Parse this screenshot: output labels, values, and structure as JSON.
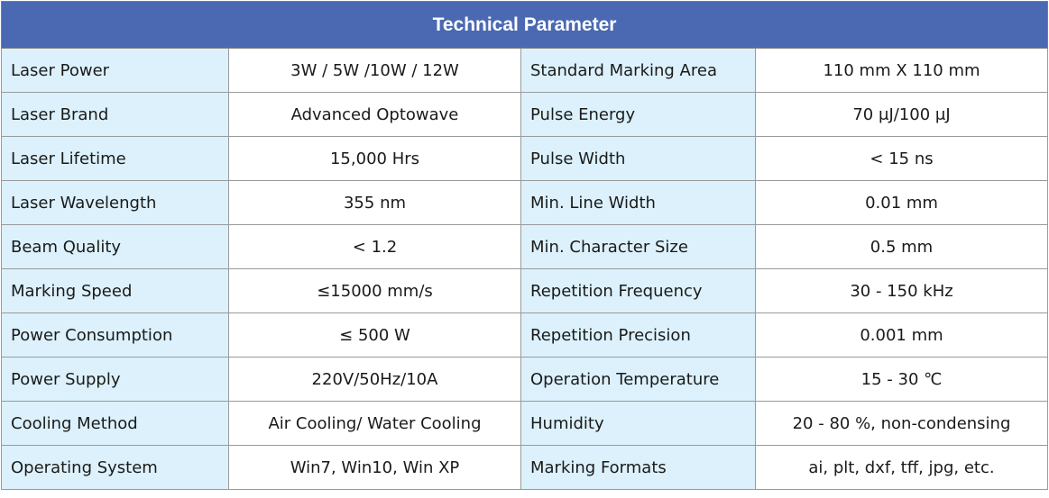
{
  "table": {
    "title": "Technical Parameter",
    "rows": [
      [
        "Laser Power",
        "3W / 5W /10W / 12W",
        "Standard Marking Area",
        "110 mm X 110 mm"
      ],
      [
        "Laser Brand",
        "Advanced Optowave",
        "Pulse Energy",
        "70 μJ/100 μJ"
      ],
      [
        "Laser Lifetime",
        "15,000 Hrs",
        "Pulse Width",
        "< 15 ns"
      ],
      [
        "Laser Wavelength",
        "355 nm",
        "Min. Line Width",
        "0.01 mm"
      ],
      [
        "Beam Quality",
        "< 1.2",
        "Min. Character Size",
        "0.5 mm"
      ],
      [
        "Marking Speed",
        "≤15000 mm/s",
        "Repetition Frequency",
        "30 - 150 kHz"
      ],
      [
        "Power Consumption",
        "≤ 500 W",
        "Repetition Precision",
        "0.001 mm"
      ],
      [
        "Power Supply",
        "220V/50Hz/10A",
        "Operation Temperature",
        "15 - 30 ℃"
      ],
      [
        "Cooling Method",
        "Air Cooling/ Water Cooling",
        "Humidity",
        "20 - 80 %, non-condensing"
      ],
      [
        "Operating System",
        "Win7, Win10, Win XP",
        "Marking Formats",
        "ai, plt, dxf, tff, jpg, etc."
      ]
    ]
  }
}
